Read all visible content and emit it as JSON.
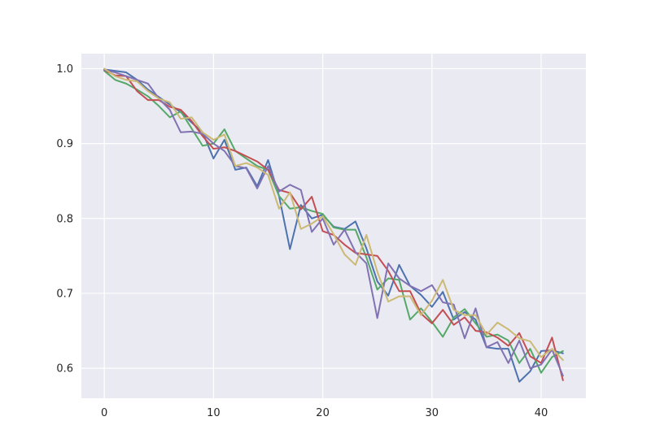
{
  "chart_data": {
    "type": "line",
    "title": "",
    "xlabel": "",
    "ylabel": "",
    "xlim": [
      -2.1,
      44.1
    ],
    "ylim": [
      0.56,
      1.02
    ],
    "x_ticks": [
      0,
      10,
      20,
      30,
      40
    ],
    "y_ticks": [
      0.6,
      0.7,
      0.8,
      0.9,
      1.0
    ],
    "x_tick_labels": [
      "0",
      "10",
      "20",
      "30",
      "40"
    ],
    "y_tick_labels": [
      "0.6",
      "0.7",
      "0.8",
      "0.9",
      "1.0"
    ],
    "grid": true,
    "background": "#EAEAF2",
    "grid_color": "#FFFFFF",
    "x": [
      0,
      1,
      2,
      3,
      4,
      5,
      6,
      7,
      8,
      9,
      10,
      11,
      12,
      13,
      14,
      15,
      16,
      17,
      18,
      19,
      20,
      21,
      22,
      23,
      24,
      25,
      26,
      27,
      28,
      29,
      30,
      31,
      32,
      33,
      34,
      35,
      36,
      37,
      38,
      39,
      40,
      41,
      42
    ],
    "series": [
      {
        "color": "#4C72B0",
        "values": [
          0.999,
          0.997,
          0.995,
          0.985,
          0.972,
          0.962,
          0.952,
          0.942,
          0.928,
          0.915,
          0.88,
          0.905,
          0.865,
          0.868,
          0.843,
          0.878,
          0.83,
          0.759,
          0.818,
          0.8,
          0.805,
          0.789,
          0.786,
          0.796,
          0.76,
          0.716,
          0.697,
          0.738,
          0.71,
          0.698,
          0.682,
          0.702,
          0.665,
          0.675,
          0.665,
          0.628,
          0.626,
          0.626,
          0.582,
          0.596,
          0.623,
          0.624,
          0.62
        ]
      },
      {
        "color": "#55A868",
        "values": [
          0.997,
          0.985,
          0.98,
          0.972,
          0.963,
          0.95,
          0.935,
          0.943,
          0.92,
          0.897,
          0.9,
          0.919,
          0.89,
          0.88,
          0.87,
          0.865,
          0.83,
          0.813,
          0.815,
          0.81,
          0.806,
          0.788,
          0.785,
          0.785,
          0.748,
          0.705,
          0.72,
          0.718,
          0.665,
          0.68,
          0.662,
          0.642,
          0.668,
          0.679,
          0.66,
          0.642,
          0.645,
          0.637,
          0.607,
          0.626,
          0.594,
          0.615,
          0.623
        ]
      },
      {
        "color": "#C44E52",
        "values": [
          0.998,
          0.991,
          0.99,
          0.97,
          0.958,
          0.958,
          0.949,
          0.945,
          0.93,
          0.91,
          0.893,
          0.895,
          0.89,
          0.883,
          0.876,
          0.865,
          0.838,
          0.834,
          0.812,
          0.829,
          0.783,
          0.778,
          0.765,
          0.754,
          0.752,
          0.75,
          0.73,
          0.703,
          0.703,
          0.673,
          0.66,
          0.678,
          0.658,
          0.668,
          0.65,
          0.648,
          0.641,
          0.63,
          0.647,
          0.616,
          0.607,
          0.641,
          0.584
        ]
      },
      {
        "color": "#8172B2",
        "values": [
          0.998,
          0.995,
          0.99,
          0.985,
          0.98,
          0.96,
          0.945,
          0.915,
          0.916,
          0.913,
          0.9,
          0.89,
          0.87,
          0.867,
          0.84,
          0.87,
          0.836,
          0.845,
          0.838,
          0.782,
          0.8,
          0.765,
          0.785,
          0.755,
          0.74,
          0.667,
          0.74,
          0.72,
          0.71,
          0.703,
          0.711,
          0.688,
          0.685,
          0.64,
          0.68,
          0.628,
          0.635,
          0.607,
          0.637,
          0.6,
          0.605,
          0.625,
          0.59
        ]
      },
      {
        "color": "#CCB974",
        "values": [
          1.0,
          0.99,
          0.985,
          0.983,
          0.97,
          0.96,
          0.955,
          0.933,
          0.935,
          0.915,
          0.905,
          0.912,
          0.87,
          0.874,
          0.868,
          0.858,
          0.813,
          0.835,
          0.786,
          0.793,
          0.803,
          0.779,
          0.752,
          0.738,
          0.778,
          0.729,
          0.689,
          0.696,
          0.696,
          0.671,
          0.69,
          0.718,
          0.678,
          0.671,
          0.671,
          0.645,
          0.661,
          0.652,
          0.64,
          0.636,
          0.615,
          0.626,
          0.611
        ]
      }
    ]
  }
}
